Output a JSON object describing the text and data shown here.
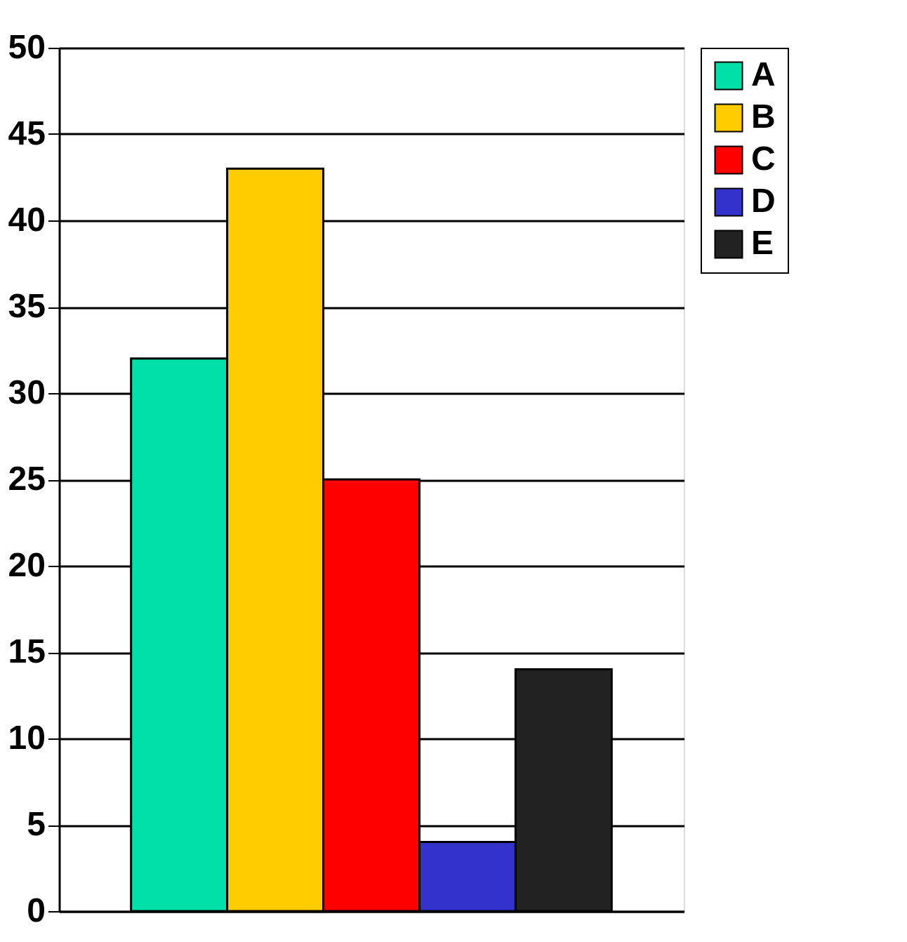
{
  "chart_data": {
    "type": "bar",
    "categories": [
      null
    ],
    "series": [
      {
        "name": "A",
        "color": "#00e0a8",
        "values": [
          32
        ]
      },
      {
        "name": "B",
        "color": "#ffcc00",
        "values": [
          43
        ]
      },
      {
        "name": "C",
        "color": "#ff0000",
        "values": [
          25
        ]
      },
      {
        "name": "D",
        "color": "#3333cc",
        "values": [
          4
        ]
      },
      {
        "name": "E",
        "color": "#222222",
        "values": [
          14
        ]
      }
    ],
    "ylim": [
      0,
      50
    ],
    "yticks": [
      0,
      5,
      10,
      15,
      20,
      25,
      30,
      35,
      40,
      45,
      50
    ],
    "grid": "y",
    "legend": "right",
    "tick_labels": "y"
  }
}
